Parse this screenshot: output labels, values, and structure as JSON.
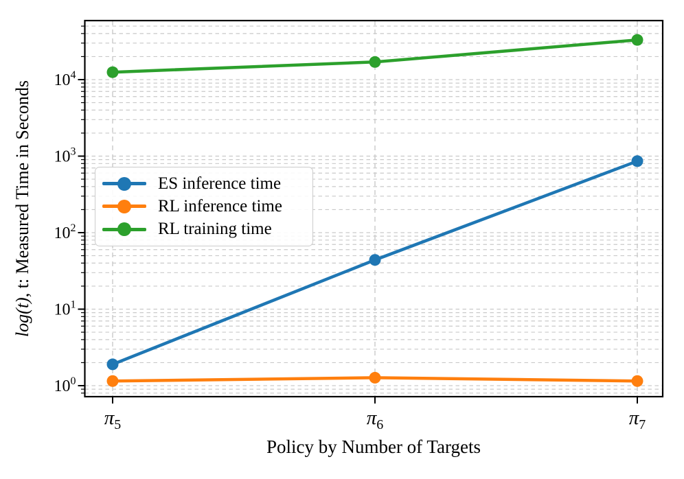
{
  "chart_data": {
    "type": "line",
    "x": [
      5,
      6,
      7
    ],
    "x_tick_labels": [
      {
        "symbol": "π",
        "sub": "5"
      },
      {
        "symbol": "π",
        "sub": "6"
      },
      {
        "symbol": "π",
        "sub": "7"
      }
    ],
    "xlabel": "Policy by Number of Targets",
    "ylabel": {
      "math": "log(t)",
      "text": ", t: Measured Time in Seconds"
    },
    "yscale": "log",
    "ylim": [
      0.72,
      59000
    ],
    "y_major_tick_exponents": [
      0,
      1,
      2,
      3,
      4
    ],
    "grid": {
      "major": true,
      "minor": true,
      "style": "dashed",
      "color": "#c9c9c9"
    },
    "legend_position": "center-left",
    "series": [
      {
        "name": "ES inference time",
        "color": "#1f77b4",
        "values": [
          1.9,
          44,
          860
        ]
      },
      {
        "name": "RL inference time",
        "color": "#ff7f0e",
        "values": [
          1.15,
          1.27,
          1.15
        ]
      },
      {
        "name": "RL training time",
        "color": "#2ca02c",
        "values": [
          12500,
          17000,
          33000
        ]
      }
    ]
  }
}
